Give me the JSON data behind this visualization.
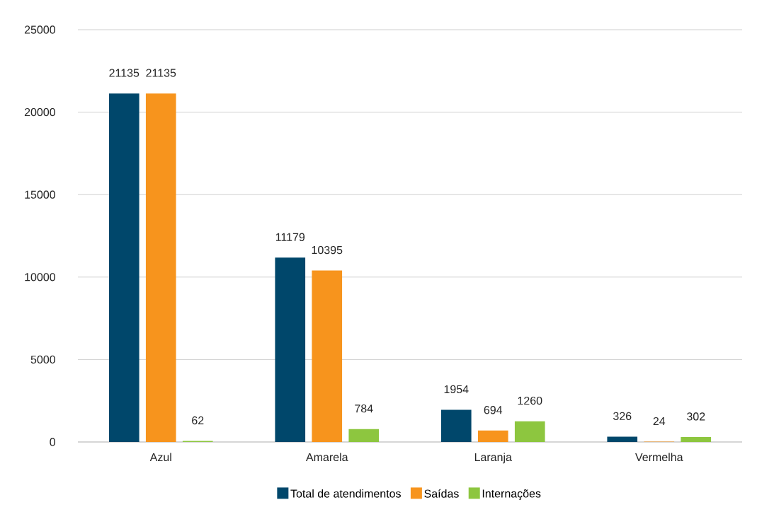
{
  "chart_data": {
    "type": "bar",
    "categories": [
      "Azul",
      "Amarela",
      "Laranja",
      "Vermelha"
    ],
    "series": [
      {
        "name": "Total de atendimentos",
        "color": "#00476b",
        "values": [
          21135,
          11179,
          1954,
          326
        ]
      },
      {
        "name": "Saídas",
        "color": "#f7941d",
        "values": [
          21135,
          10395,
          694,
          24
        ]
      },
      {
        "name": "Internações",
        "color": "#8dc63f",
        "values": [
          62,
          784,
          1260,
          302
        ]
      }
    ],
    "ylim": [
      0,
      25000
    ],
    "yticks": [
      0,
      5000,
      10000,
      15000,
      20000,
      25000
    ],
    "grid": "y",
    "legend": "bottom",
    "data_labels": true
  }
}
